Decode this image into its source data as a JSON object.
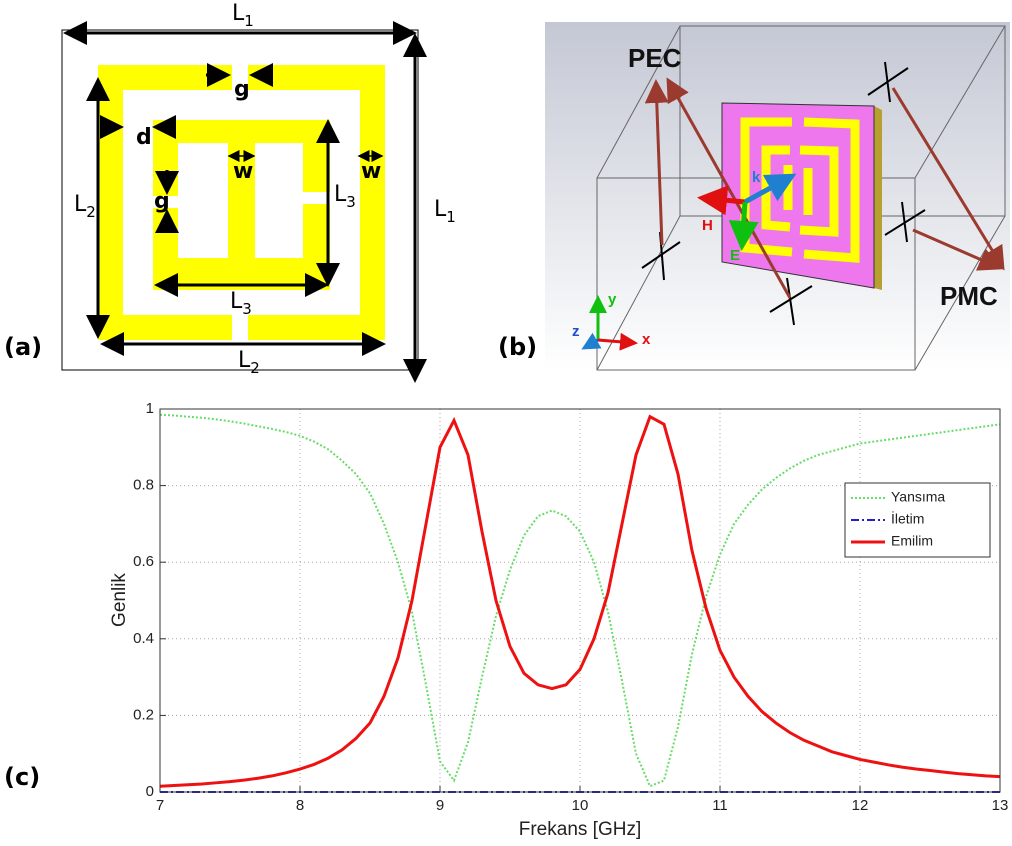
{
  "panels": {
    "a": "(a)",
    "b": "(b)",
    "c": "(c)"
  },
  "diagram_a": {
    "labels": [
      {
        "text": "L",
        "sub": "1"
      },
      {
        "text": "L",
        "sub": "1"
      },
      {
        "text": "L",
        "sub": "2"
      },
      {
        "text": "L",
        "sub": "2"
      },
      {
        "text": "L",
        "sub": "3"
      },
      {
        "text": "L",
        "sub": "3"
      },
      {
        "text": "g"
      },
      {
        "text": "g"
      },
      {
        "text": "d"
      },
      {
        "text": "w"
      },
      {
        "text": "w"
      }
    ]
  },
  "diagram_b": {
    "labels": [
      "PEC",
      "PMC",
      "k",
      "H",
      "E",
      "y",
      "z",
      "x"
    ]
  },
  "chart_data": {
    "type": "line",
    "xlabel": "Frekans [GHz]",
    "ylabel": "Genlik",
    "xlim": [
      7,
      13
    ],
    "ylim": [
      0,
      1
    ],
    "xticks": [
      7,
      8,
      9,
      10,
      11,
      12,
      13
    ],
    "yticks": [
      0,
      0.2,
      0.4,
      0.6,
      0.8,
      1
    ],
    "grid": true,
    "legend": "right",
    "x": [
      7,
      7.1,
      7.2,
      7.3,
      7.4,
      7.5,
      7.6,
      7.7,
      7.8,
      7.9,
      8,
      8.1,
      8.2,
      8.3,
      8.4,
      8.5,
      8.6,
      8.7,
      8.8,
      8.9,
      9,
      9.1,
      9.2,
      9.3,
      9.4,
      9.5,
      9.6,
      9.7,
      9.8,
      9.9,
      10,
      10.1,
      10.2,
      10.3,
      10.4,
      10.5,
      10.6,
      10.7,
      10.8,
      10.9,
      11,
      11.1,
      11.2,
      11.3,
      11.4,
      11.5,
      11.6,
      11.7,
      11.8,
      11.9,
      12,
      12.1,
      12.2,
      12.3,
      12.4,
      12.5,
      12.6,
      12.7,
      12.8,
      12.9,
      13
    ],
    "series": [
      {
        "name": "Yansıma",
        "color": "#66dd66",
        "linestyle": "dotted",
        "values": [
          0.985,
          0.983,
          0.98,
          0.977,
          0.973,
          0.968,
          0.962,
          0.955,
          0.948,
          0.94,
          0.93,
          0.915,
          0.895,
          0.865,
          0.83,
          0.78,
          0.7,
          0.6,
          0.47,
          0.28,
          0.08,
          0.03,
          0.13,
          0.3,
          0.46,
          0.58,
          0.67,
          0.72,
          0.735,
          0.72,
          0.68,
          0.6,
          0.47,
          0.29,
          0.1,
          0.015,
          0.03,
          0.17,
          0.36,
          0.51,
          0.62,
          0.7,
          0.75,
          0.79,
          0.82,
          0.845,
          0.865,
          0.88,
          0.89,
          0.9,
          0.91,
          0.915,
          0.92,
          0.925,
          0.93,
          0.935,
          0.94,
          0.945,
          0.95,
          0.955,
          0.96
        ]
      },
      {
        "name": "İletim",
        "color": "#2222cc",
        "linestyle": "dashdot",
        "values": [
          0,
          0,
          0,
          0,
          0,
          0,
          0,
          0,
          0,
          0,
          0,
          0,
          0,
          0,
          0,
          0,
          0,
          0,
          0,
          0,
          0,
          0,
          0,
          0,
          0,
          0,
          0,
          0,
          0,
          0,
          0,
          0,
          0,
          0,
          0,
          0,
          0,
          0,
          0,
          0,
          0,
          0,
          0,
          0,
          0,
          0,
          0,
          0,
          0,
          0,
          0,
          0,
          0,
          0,
          0,
          0,
          0,
          0,
          0,
          0,
          0
        ]
      },
      {
        "name": "Emilim",
        "color": "#ee1111",
        "linestyle": "solid",
        "values": [
          0.015,
          0.017,
          0.019,
          0.021,
          0.024,
          0.027,
          0.031,
          0.036,
          0.042,
          0.05,
          0.06,
          0.072,
          0.088,
          0.11,
          0.14,
          0.18,
          0.25,
          0.35,
          0.5,
          0.7,
          0.9,
          0.97,
          0.88,
          0.68,
          0.5,
          0.38,
          0.31,
          0.28,
          0.27,
          0.28,
          0.32,
          0.4,
          0.52,
          0.7,
          0.88,
          0.98,
          0.96,
          0.83,
          0.63,
          0.48,
          0.37,
          0.3,
          0.25,
          0.21,
          0.18,
          0.155,
          0.135,
          0.12,
          0.105,
          0.095,
          0.085,
          0.078,
          0.071,
          0.065,
          0.06,
          0.056,
          0.052,
          0.048,
          0.045,
          0.042,
          0.04
        ]
      }
    ]
  }
}
